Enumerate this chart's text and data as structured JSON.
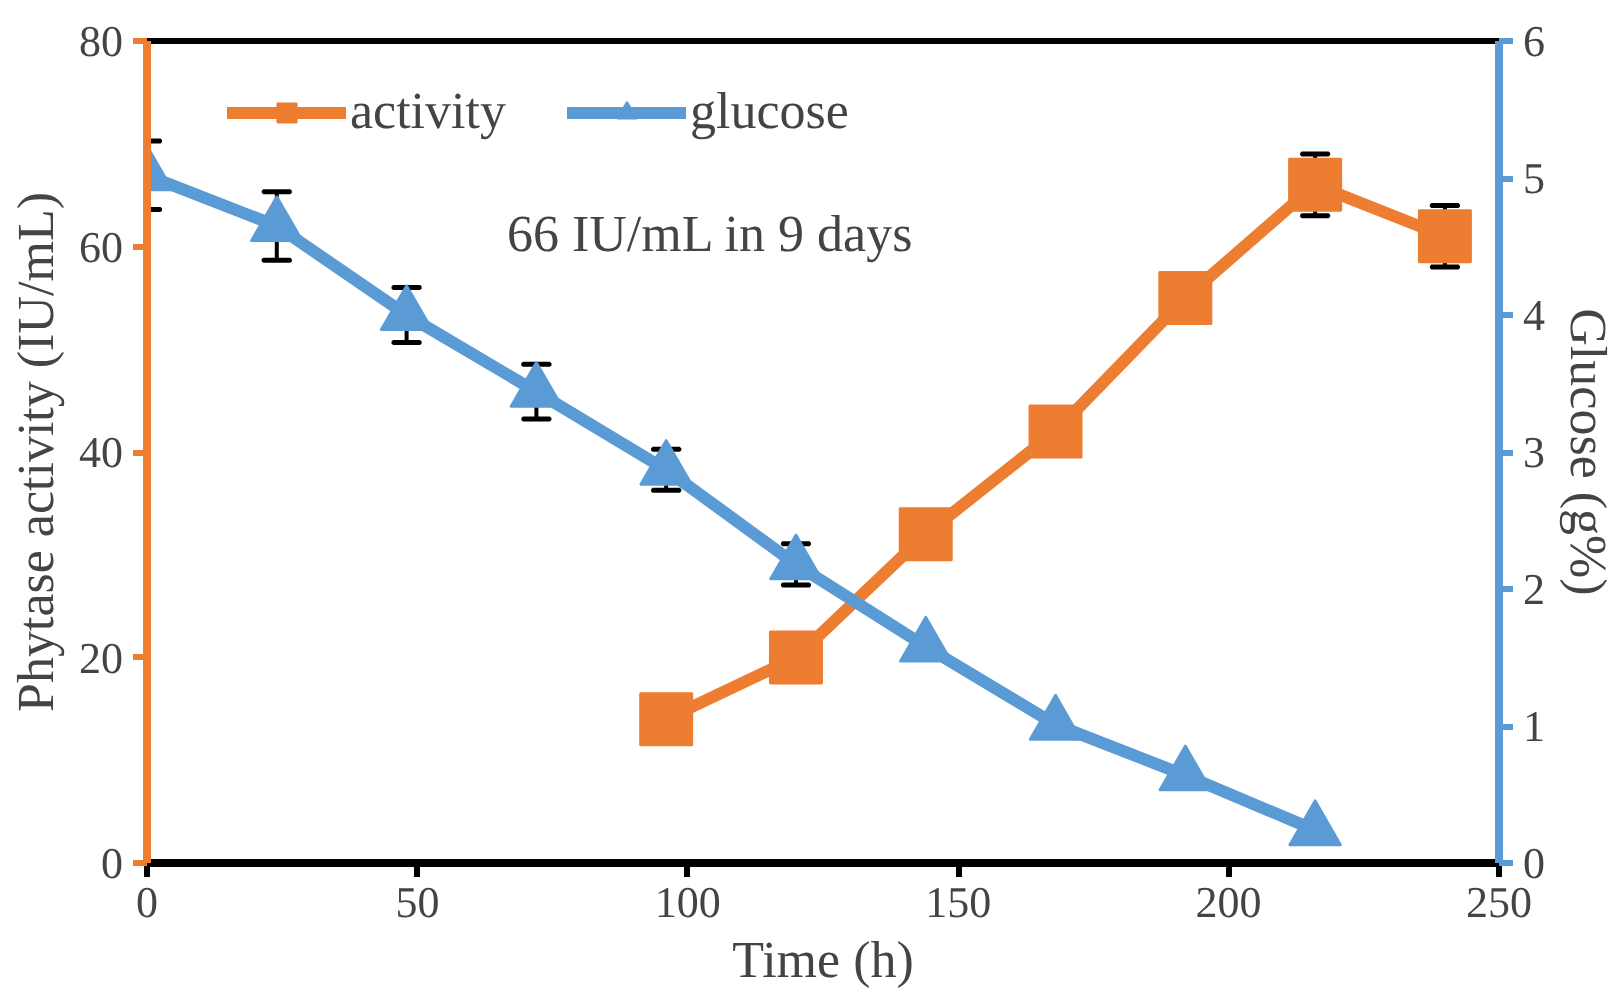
{
  "chart_data": {
    "type": "line",
    "xlabel": "Time (h)",
    "ylabel": "Phytase activity (IU/mL)",
    "y2label": "Glucose (g%)",
    "xlim": [
      0,
      250
    ],
    "xticks": [
      0,
      50,
      100,
      150,
      200,
      250
    ],
    "ylim": [
      0,
      80
    ],
    "yticks": [
      0,
      20,
      40,
      60,
      80
    ],
    "y2lim": [
      0,
      6
    ],
    "y2ticks": [
      0,
      1,
      2,
      3,
      4,
      5,
      6
    ],
    "grid": false,
    "legend": "top",
    "annotations": [
      "66 IU/mL in 9 days"
    ],
    "series": [
      {
        "name": "activity",
        "color": "#ed7d31",
        "marker": "square",
        "x": [
          96,
          120,
          144,
          168,
          192,
          216,
          240
        ],
        "values": [
          14,
          20,
          32,
          42,
          55,
          66,
          61
        ],
        "errors": [
          null,
          null,
          null,
          null,
          null,
          3,
          3
        ]
      },
      {
        "name": "glucose",
        "color": "#5b9bd5",
        "marker": "triangle",
        "axis": "y2",
        "x": [
          0,
          24,
          48,
          72,
          96,
          120,
          144,
          168,
          192,
          216
        ],
        "values": [
          5.02,
          4.65,
          4.0,
          3.44,
          2.87,
          2.18,
          1.58,
          1.01,
          0.64,
          0.24
        ],
        "errors": [
          0.25,
          0.25,
          0.2,
          0.2,
          0.15,
          0.15,
          null,
          null,
          null,
          null
        ]
      }
    ]
  }
}
